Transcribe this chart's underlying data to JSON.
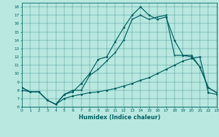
{
  "xlabel": "Humidex (Indice chaleur)",
  "bg_color": "#b8e8e0",
  "line_color": "#006060",
  "xlim": [
    0,
    23
  ],
  "ylim": [
    6,
    18.5
  ],
  "xticks": [
    0,
    1,
    2,
    3,
    4,
    5,
    6,
    7,
    8,
    9,
    10,
    11,
    12,
    13,
    14,
    15,
    16,
    17,
    18,
    19,
    20,
    21,
    22,
    23
  ],
  "yticks": [
    6,
    7,
    8,
    9,
    10,
    11,
    12,
    13,
    14,
    15,
    16,
    17,
    18
  ],
  "line1_x": [
    0,
    1,
    2,
    3,
    4,
    5,
    6,
    7,
    8,
    9,
    10,
    11,
    12,
    13,
    14,
    15,
    16,
    17,
    18,
    19,
    20,
    21,
    22,
    23
  ],
  "line1_y": [
    8.3,
    7.8,
    7.8,
    6.8,
    6.3,
    7.5,
    7.8,
    8.8,
    10.0,
    11.7,
    12.0,
    13.8,
    15.5,
    17.0,
    18.0,
    17.0,
    16.5,
    16.8,
    14.0,
    12.2,
    12.0,
    10.8,
    8.3,
    7.7
  ],
  "line2_x": [
    0,
    1,
    2,
    3,
    4,
    5,
    6,
    7,
    8,
    9,
    10,
    11,
    12,
    13,
    14,
    15,
    16,
    17,
    18,
    19,
    20,
    21,
    22,
    23
  ],
  "line2_y": [
    8.3,
    7.8,
    7.8,
    6.8,
    6.3,
    7.5,
    8.0,
    8.0,
    9.8,
    10.5,
    11.5,
    12.5,
    14.0,
    16.5,
    17.0,
    16.5,
    16.8,
    17.0,
    12.2,
    12.2,
    12.2,
    10.8,
    8.3,
    7.7
  ],
  "line3_x": [
    0,
    1,
    2,
    3,
    4,
    5,
    6,
    7,
    8,
    9,
    10,
    11,
    12,
    13,
    14,
    15,
    16,
    17,
    18,
    19,
    20,
    21,
    22,
    23
  ],
  "line3_y": [
    8.0,
    7.8,
    7.8,
    6.8,
    6.3,
    7.0,
    7.3,
    7.5,
    7.7,
    7.8,
    8.0,
    8.2,
    8.5,
    8.8,
    9.2,
    9.5,
    10.0,
    10.5,
    11.0,
    11.5,
    11.8,
    12.0,
    7.7,
    7.5
  ]
}
